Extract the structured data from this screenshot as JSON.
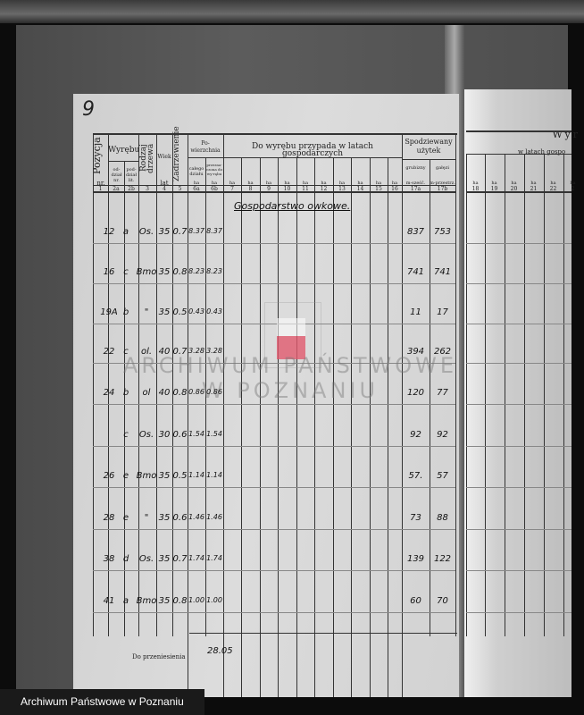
{
  "page_number": "9",
  "header": {
    "pozycja": "Pozycja",
    "wyrebu": "Wyrębu",
    "oddzial": "od-dział nr.",
    "pododdzial": "pod-dział lit.",
    "rodzaj": "Rodzaj drzewa",
    "wiek": "Wiek",
    "wiek_unit": "lat",
    "zadrzewienie": "Zadrzewienie",
    "powierzchnia": "Po-wierzchnia",
    "calego": "całego działu",
    "przeznaczona": "przezna-czona do wy-rębu",
    "nr": "nr.",
    "ha": "ha",
    "do_wyrebu": "Do wyrębu przypada w latach gospodarczych",
    "spodziewany": "Spodziewany użytek",
    "grubizny": "grubizny",
    "galezi": "gałęzi",
    "m_szesc": "m-sześć.",
    "m_przestrz": "m-przestrz.",
    "col_numbers": [
      "1",
      "2a",
      "2b",
      "3",
      "4",
      "5",
      "6a",
      "6b",
      "7",
      "8",
      "9",
      "10",
      "11",
      "12",
      "13",
      "14",
      "15",
      "16",
      "17a",
      "17b"
    ],
    "right_page_title": "Wyr",
    "right_page_sub": "w latach gospo",
    "right_col_numbers": [
      "18",
      "19",
      "20",
      "21",
      "22",
      "2"
    ]
  },
  "section_title": "Gospodarstwo owkowe.",
  "rows": [
    {
      "nr": "12",
      "lit": "a",
      "rodzaj": "Os.",
      "wiek": "35",
      "zadrz": "0.7",
      "cal": "8.37",
      "wyr": "8.37",
      "grub": "837",
      "gal": "753"
    },
    {
      "nr": "16",
      "lit": "c",
      "rodzaj": "Bmo",
      "wiek": "35",
      "zadrz": "0.8",
      "cal": "8.23",
      "wyr": "8.23",
      "grub": "741",
      "gal": "741"
    },
    {
      "nr": "19A",
      "lit": "b",
      "rodzaj": "\"",
      "wiek": "35",
      "zadrz": "0.5",
      "cal": "0.43",
      "wyr": "0.43",
      "grub": "11",
      "gal": "17"
    },
    {
      "nr": "22",
      "lit": "c",
      "rodzaj": "ol.",
      "wiek": "40",
      "zadrz": "0.7",
      "cal": "3.28",
      "wyr": "3.28",
      "grub": "394",
      "gal": "262"
    },
    {
      "nr": "24",
      "lit": "b",
      "rodzaj": "ol",
      "wiek": "40",
      "zadrz": "0.8",
      "cal": "0.86",
      "wyr": "0.86",
      "grub": "120",
      "gal": "77"
    },
    {
      "nr": "",
      "lit": "c",
      "rodzaj": "Os.",
      "wiek": "30",
      "zadrz": "0.6",
      "cal": "1.54",
      "wyr": "1.54",
      "grub": "92",
      "gal": "92"
    },
    {
      "nr": "26",
      "lit": "e",
      "rodzaj": "Bmo",
      "wiek": "35",
      "zadrz": "0.5",
      "cal": "1.14",
      "wyr": "1.14",
      "grub": "57.",
      "gal": "57"
    },
    {
      "nr": "28",
      "lit": "e",
      "rodzaj": "\"",
      "wiek": "35",
      "zadrz": "0.6",
      "cal": "1.46",
      "wyr": "1.46",
      "grub": "73",
      "gal": "88"
    },
    {
      "nr": "38",
      "lit": "d",
      "rodzaj": "Os.",
      "wiek": "35",
      "zadrz": "0.7",
      "cal": "1.74",
      "wyr": "1.74",
      "grub": "139",
      "gal": "122"
    },
    {
      "nr": "41",
      "lit": "a",
      "rodzaj": "Bmo",
      "wiek": "35",
      "zadrz": "0.8",
      "cal": "1.00",
      "wyr": "1.00",
      "grub": "60",
      "gal": "70"
    }
  ],
  "footer": {
    "label": "Do przeniesienia",
    "total": "28.05"
  },
  "watermark": {
    "line1": "ARCHIWUM PAŃSTWOWE",
    "line2": "W POZNANIU"
  },
  "banner": "Archiwum Państwowe w Poznaniu"
}
